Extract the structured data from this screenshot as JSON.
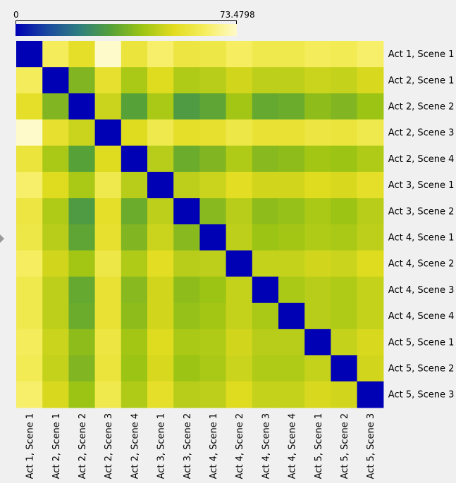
{
  "legend": {
    "min_label": "0",
    "max_label": "73.4798",
    "min": 0,
    "max": 73.4798,
    "colormap": [
      "#0000b4",
      "#1a48a0",
      "#2e7d80",
      "#54a03a",
      "#9cc414",
      "#e2dc20",
      "#f6ee60",
      "#fffaca"
    ]
  },
  "chart_data": {
    "type": "heatmap",
    "x": [
      "Act 1, Scene 1",
      "Act 2, Scene 1",
      "Act 2, Scene 2",
      "Act 2, Scene 3",
      "Act 2, Scene 4",
      "Act 3, Scene 1",
      "Act 3, Scene 2",
      "Act 4, Scene 1",
      "Act 4, Scene 2",
      "Act 4, Scene 3",
      "Act 4, Scene 4",
      "Act 5, Scene 1",
      "Act 5, Scene 2",
      "Act 5, Scene 3"
    ],
    "y": [
      "Act 1, Scene 1",
      "Act 2, Scene 1",
      "Act 2, Scene 2",
      "Act 2, Scene 3",
      "Act 2, Scene 4",
      "Act 3, Scene 1",
      "Act 3, Scene 2",
      "Act 4, Scene 1",
      "Act 4, Scene 2",
      "Act 4, Scene 3",
      "Act 4, Scene 4",
      "Act 5, Scene 1",
      "Act 5, Scene 2",
      "Act 5, Scene 3"
    ],
    "vmin": 0,
    "vmax": 73.4798,
    "values": [
      [
        0.0,
        62.0,
        54.0,
        73.5,
        57.0,
        64.0,
        58.0,
        59.0,
        63.0,
        60.0,
        60.0,
        62.0,
        61.0,
        64.0
      ],
      [
        62.0,
        0.0,
        38.0,
        55.0,
        44.0,
        52.0,
        45.0,
        46.0,
        50.0,
        47.0,
        47.0,
        49.0,
        48.0,
        51.0
      ],
      [
        54.0,
        38.0,
        0.0,
        49.0,
        32.0,
        44.0,
        30.0,
        33.0,
        43.0,
        34.0,
        35.0,
        40.0,
        38.0,
        42.0
      ],
      [
        73.5,
        55.0,
        49.0,
        0.0,
        52.0,
        60.0,
        54.0,
        55.0,
        59.0,
        56.0,
        56.0,
        58.0,
        57.0,
        60.0
      ],
      [
        57.0,
        44.0,
        32.0,
        52.0,
        0.0,
        46.0,
        35.0,
        38.0,
        45.0,
        39.0,
        40.0,
        43.0,
        42.0,
        45.0
      ],
      [
        64.0,
        52.0,
        44.0,
        60.0,
        46.0,
        0.0,
        47.0,
        49.0,
        53.0,
        50.0,
        50.0,
        52.0,
        51.0,
        54.0
      ],
      [
        58.0,
        45.0,
        30.0,
        54.0,
        35.0,
        47.0,
        0.0,
        39.0,
        46.0,
        40.0,
        41.0,
        44.0,
        42.0,
        46.0
      ],
      [
        59.0,
        46.0,
        33.0,
        55.0,
        38.0,
        49.0,
        39.0,
        0.0,
        47.0,
        42.0,
        43.0,
        45.0,
        44.0,
        47.0
      ],
      [
        63.0,
        50.0,
        43.0,
        59.0,
        45.0,
        53.0,
        46.0,
        47.0,
        0.0,
        48.0,
        48.0,
        50.0,
        49.0,
        52.0
      ],
      [
        60.0,
        47.0,
        34.0,
        56.0,
        39.0,
        50.0,
        40.0,
        42.0,
        48.0,
        0.0,
        44.0,
        46.0,
        45.0,
        48.0
      ],
      [
        60.0,
        47.0,
        35.0,
        56.0,
        40.0,
        50.0,
        41.0,
        43.0,
        48.0,
        44.0,
        0.0,
        46.0,
        45.0,
        48.0
      ],
      [
        62.0,
        49.0,
        40.0,
        58.0,
        43.0,
        52.0,
        44.0,
        45.0,
        50.0,
        46.0,
        46.0,
        0.0,
        48.0,
        51.0
      ],
      [
        61.0,
        48.0,
        38.0,
        57.0,
        42.0,
        51.0,
        42.0,
        44.0,
        49.0,
        45.0,
        45.0,
        48.0,
        0.0,
        50.0
      ],
      [
        64.0,
        51.0,
        42.0,
        60.0,
        45.0,
        54.0,
        46.0,
        47.0,
        52.0,
        48.0,
        48.0,
        51.0,
        50.0,
        0.0
      ]
    ]
  }
}
